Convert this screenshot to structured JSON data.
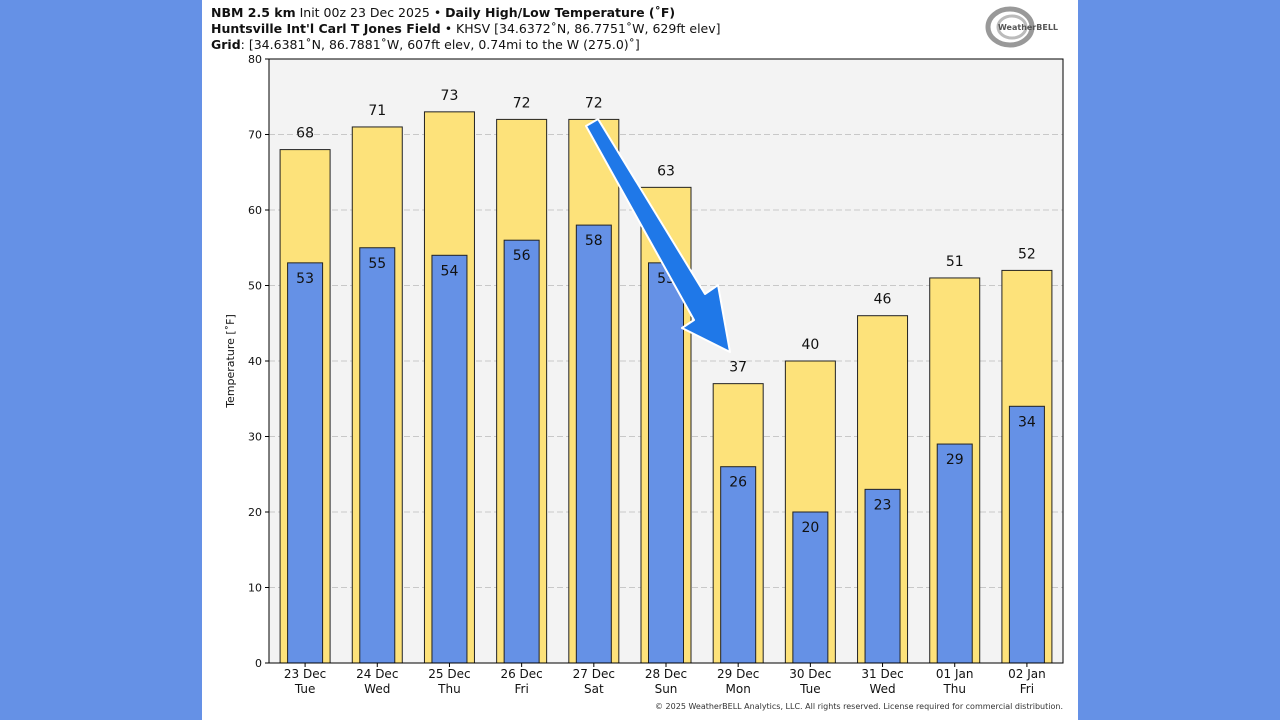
{
  "header": {
    "line1_bold1": "NBM 2.5 km",
    "line1_normal": " Init 00z 23 Dec 2025 • ",
    "line1_bold2": "Daily High/Low Temperature (˚F)",
    "line2_bold": "Huntsville Int'l Carl T Jones Field",
    "line2_normal": " • KHSV [34.6372˚N, 86.7751˚W, 629ft elev]",
    "line3_bold": "Grid",
    "line3_normal": ": [34.6381˚N, 86.7881˚W, 607ft elev, 0.74mi to the W (275.0)˚]"
  },
  "logo": {
    "text": "WeatherBELL"
  },
  "footer": "© 2025 WeatherBELL Analytics, LLC. All rights reserved. License required for commercial distribution.",
  "colors": {
    "high": "#fde27a",
    "low": "#6591e6",
    "background": "#6591e6",
    "plot_bg": "#f3f3f3",
    "arrow": "#1f78e8"
  },
  "chart_data": {
    "type": "bar",
    "ylabel": "Temperature [˚F]",
    "ylim": [
      0,
      80
    ],
    "yticks": [
      0,
      10,
      20,
      30,
      40,
      50,
      60,
      70,
      80
    ],
    "grid": true,
    "categories": [
      [
        "23 Dec",
        "Tue"
      ],
      [
        "24 Dec",
        "Wed"
      ],
      [
        "25 Dec",
        "Thu"
      ],
      [
        "26 Dec",
        "Fri"
      ],
      [
        "27 Dec",
        "Sat"
      ],
      [
        "28 Dec",
        "Sun"
      ],
      [
        "29 Dec",
        "Mon"
      ],
      [
        "30 Dec",
        "Tue"
      ],
      [
        "31 Dec",
        "Wed"
      ],
      [
        "01 Jan",
        "Thu"
      ],
      [
        "02 Jan",
        "Fri"
      ]
    ],
    "series": [
      {
        "values": [
          68,
          71,
          73,
          72,
          72,
          63,
          37,
          40,
          46,
          51,
          52
        ]
      },
      {
        "values": [
          53,
          55,
          54,
          56,
          58,
          53,
          26,
          20,
          23,
          29,
          34
        ]
      }
    ],
    "annotation": {
      "type": "arrow",
      "from_category": "27 Dec",
      "to_category": "29 Dec"
    }
  }
}
